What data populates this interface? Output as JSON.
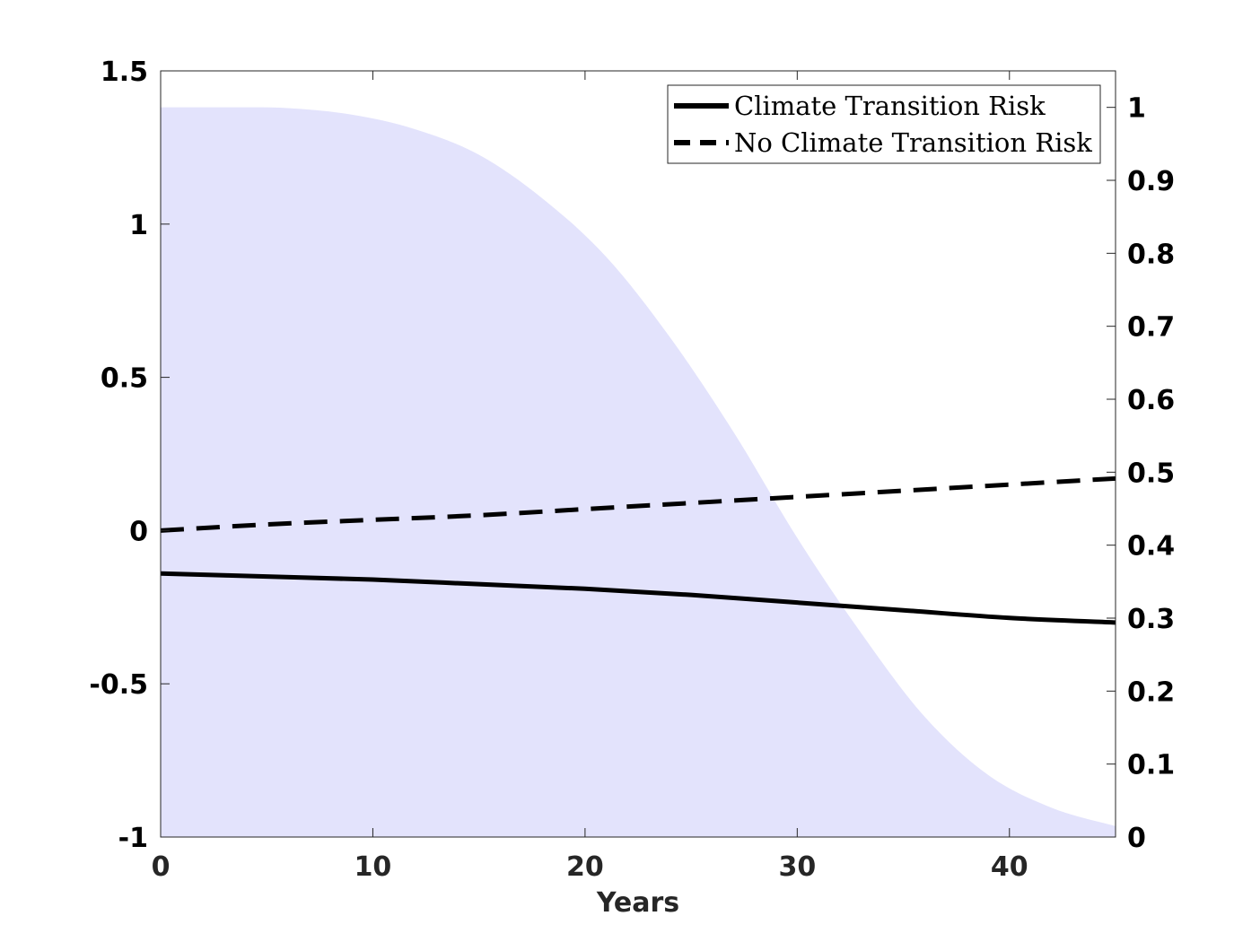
{
  "chart_data": {
    "type": "line",
    "title": "",
    "xlabel": "Years",
    "ylabel": "",
    "y2label": "",
    "xlim": [
      0,
      45
    ],
    "ylim": [
      -1,
      1.5
    ],
    "y2lim": [
      0,
      1.05
    ],
    "xticks": [
      "0",
      "10",
      "20",
      "30",
      "40"
    ],
    "yticks": [
      "-1",
      "-0.5",
      "0",
      "0.5",
      "1",
      "1.5"
    ],
    "y2ticks": [
      "0",
      "0.1",
      "0.2",
      "0.3",
      "0.4",
      "0.5",
      "0.6",
      "0.7",
      "0.8",
      "0.9",
      "1"
    ],
    "legend_position": "top-right",
    "grid": false,
    "series": [
      {
        "name": "Climate Transition Risk",
        "style": "solid",
        "color": "#000000",
        "axis": "left",
        "x": [
          0,
          5,
          10,
          15,
          20,
          25,
          30,
          35,
          40,
          45
        ],
        "values": [
          -0.14,
          -0.15,
          -0.16,
          -0.175,
          -0.19,
          -0.21,
          -0.235,
          -0.26,
          -0.285,
          -0.3
        ]
      },
      {
        "name": "No Climate Transition Risk",
        "style": "dashed",
        "color": "#000000",
        "axis": "left",
        "x": [
          0,
          5,
          10,
          15,
          20,
          25,
          30,
          35,
          40,
          45
        ],
        "values": [
          0.0,
          0.02,
          0.035,
          0.05,
          0.07,
          0.09,
          0.11,
          0.13,
          0.15,
          0.17
        ]
      }
    ],
    "area": {
      "axis": "right",
      "color": "#e3e3fc",
      "x": [
        0,
        3,
        6,
        9,
        12,
        15,
        18,
        21,
        24,
        27,
        30,
        33,
        36,
        39,
        42,
        45
      ],
      "values": [
        1.0,
        1.0,
        0.999,
        0.99,
        0.97,
        0.935,
        0.875,
        0.795,
        0.685,
        0.555,
        0.41,
        0.28,
        0.165,
        0.085,
        0.04,
        0.015
      ]
    }
  }
}
